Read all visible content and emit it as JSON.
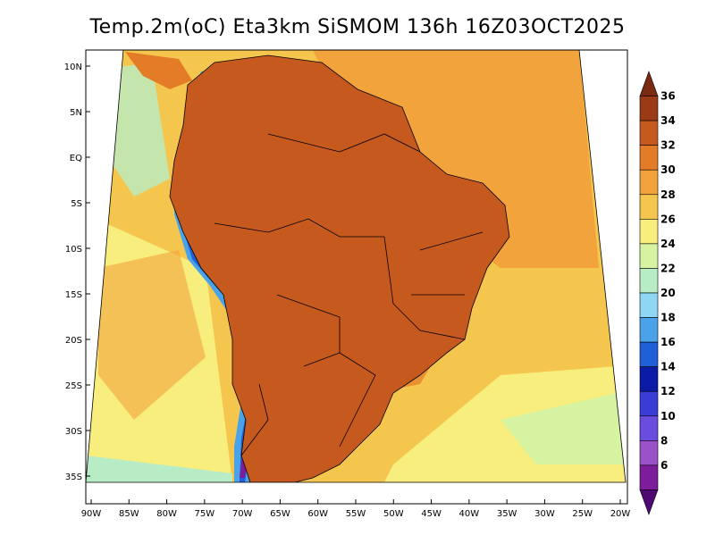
{
  "title": "Temp.2m(oC) Eta3km SiSMOM 136h 16Z03OCT2025",
  "map": {
    "x_ticks": [
      "90W",
      "85W",
      "80W",
      "75W",
      "70W",
      "65W",
      "60W",
      "55W",
      "50W",
      "45W",
      "40W",
      "35W",
      "30W",
      "25W",
      "20W"
    ],
    "y_ticks": [
      "10N",
      "5N",
      "EQ",
      "5S",
      "10S",
      "15S",
      "20S",
      "25S",
      "30S",
      "35S"
    ],
    "regions": [
      {
        "name": "ocean-north",
        "value": 28
      },
      {
        "name": "ocean-pacific-equatorial",
        "value": 26
      },
      {
        "name": "ocean-pacific-south",
        "value": 24
      },
      {
        "name": "ocean-atlantic-south",
        "value": 26
      },
      {
        "name": "ocean-far-south",
        "value": 20
      },
      {
        "name": "amazon-interior",
        "value": 32
      },
      {
        "name": "northeast-brazil",
        "value": 34
      },
      {
        "name": "central-brazil",
        "value": 32
      },
      {
        "name": "southeast-brazil",
        "value": 30
      },
      {
        "name": "southern-cone",
        "value": 30
      },
      {
        "name": "andes-highlands",
        "value": 12
      }
    ]
  },
  "colorbar": {
    "levels": [
      "36",
      "34",
      "32",
      "30",
      "28",
      "26",
      "24",
      "22",
      "20",
      "18",
      "16",
      "14",
      "12",
      "10",
      "8",
      "6"
    ],
    "colors": [
      "#7a2a10",
      "#9a3a16",
      "#c65a1e",
      "#e47b27",
      "#f2a33c",
      "#f5c64e",
      "#f7ee7e",
      "#d5f3a0",
      "#b8ecc4",
      "#8fd6f4",
      "#4aa3e8",
      "#1f5fd8",
      "#0c1ba6",
      "#3a3cd6",
      "#6b4ce0",
      "#9b52c8",
      "#7e1d9c",
      "#4e0a72"
    ]
  }
}
